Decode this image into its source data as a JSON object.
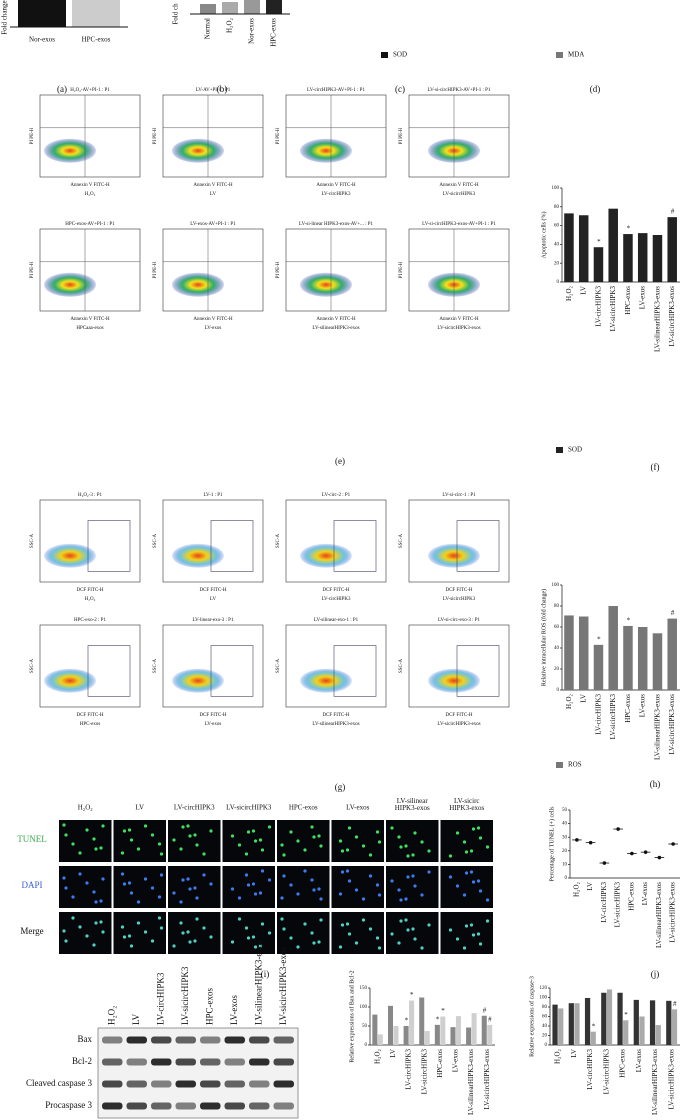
{
  "top": {
    "axis_a": "Fold change in",
    "axis_b": "Fold ch",
    "cats_a": [
      "Nor-exos",
      "HPC-exos"
    ],
    "cats_b": [
      "Normal",
      "H₂O₂",
      "Nor-exos",
      "HPC-exos"
    ],
    "legend": [
      "SOD",
      "MDA"
    ]
  },
  "panel_labels": [
    "(a)",
    "(b)",
    "(c)",
    "(d)",
    "(e)",
    "(f)",
    "(g)",
    "(h)",
    "(i)",
    "(j)"
  ],
  "flow_apoptosis": {
    "x_label": "Annexin V FITC-H",
    "y_label": "PI PE-H",
    "plots": [
      {
        "title": "H₂O₂-AV+PI-1 : P1",
        "caption": "H₂O₂"
      },
      {
        "title": "LV-AV+PI-1 : P1",
        "caption": "LV"
      },
      {
        "title": "LV-circHIPK3-AV+PI-1 : P1",
        "caption": "LV-circHIPK3"
      },
      {
        "title": "LV-si-circHIPK3-AV+PI-1 : P1",
        "caption": "LV-sicircHIPK3"
      },
      {
        "title": "HPC-exos-AV+PI-1 : P1",
        "caption": "HPCaaa-exos"
      },
      {
        "title": "LV-exos-AV+PI-1 : P1",
        "caption": "LV-exos"
      },
      {
        "title": "LV-si-linear HIPK3-exos-AV+... : P1",
        "caption": "LV-silinearHIPK3-exos"
      },
      {
        "title": "LV-si-circHIPK3-exos-AV+PI-1 : P1",
        "caption": "LV-sicircHIPK3-exos"
      }
    ]
  },
  "flow_ros": {
    "x_label": "DCF FITC-H",
    "y_label": "SSC-A",
    "plots": [
      {
        "title": "H₂O₂-3 : P1",
        "caption": "H₂O₂"
      },
      {
        "title": "LV-1 : P1",
        "caption": "LV"
      },
      {
        "title": "LV-circ-2 : P1",
        "caption": "LV-circHIPK3"
      },
      {
        "title": "LV-si-circ-1 : P1",
        "caption": "LV-sicircHIPK3"
      },
      {
        "title": "HPC-exo-2 : P1",
        "caption": "HPC-exos"
      },
      {
        "title": "LV-linear-exo-3 : P1",
        "caption": "LV-exos"
      },
      {
        "title": "LV-silinear-exo-1 : P1",
        "caption": "LV-silinearHIPK3-exos"
      },
      {
        "title": "LV-si-circ-exo-3 : P1",
        "caption": "LV-sicircHIPK3-exos"
      }
    ]
  },
  "microscopy": {
    "headers": [
      [
        "H₂O₂"
      ],
      [
        "LV"
      ],
      [
        "LV-circHIPK3"
      ],
      [
        "LV-sicircHIPK3"
      ],
      [
        "HPC-exos"
      ],
      [
        "LV-exos"
      ],
      [
        "LV-silinear",
        "HIPK3-exos"
      ],
      [
        "LV-sicirc",
        "HIPK3-exos"
      ]
    ],
    "rows": [
      "TUNEL",
      "DAPI",
      "Merge"
    ]
  },
  "blot": {
    "headers": [
      "H₂O₂",
      "LV",
      "LV-circHIPK3",
      "LV-sicircHIPK3",
      "HPC-exos",
      "LV-exos",
      "LV-silinearHIPK3-exos",
      "LV-sicircHIPK3-exos"
    ],
    "rows": [
      "Bax",
      "Bcl-2",
      "Cleaved caspase 3",
      "Procaspase 3"
    ]
  },
  "charts": [
    {
      "type": "bar",
      "ylabel": "Apoptotic cells (%)",
      "categories": [
        "H₂O₂",
        "LV",
        "LV-circHIPK3",
        "LV-sicircHIPK3",
        "HPC-exos",
        "LV-exos",
        "LV-silinearHIPK3-exos",
        "LV-sicircHIPK3-exos"
      ],
      "series": [
        {
          "name": "SOD",
          "color": "#222222",
          "values": [
            73,
            71,
            37,
            78,
            51,
            52,
            50,
            69
          ],
          "significance": [
            null,
            null,
            "*",
            null,
            "*",
            null,
            null,
            "#"
          ]
        }
      ],
      "ylim": [
        0,
        100
      ],
      "yticks": [
        0,
        20,
        40,
        60,
        80,
        100
      ]
    },
    {
      "type": "bar",
      "ylabel": "Relative intracellular ROS (fold change)",
      "categories": [
        "H₂O₂",
        "LV",
        "LV-circHIPK3",
        "LV-sicircHIPK3",
        "HPC-exos",
        "LV-exos",
        "LV-silinearHIPK3-exos",
        "LV-sicircHIPK3-exos"
      ],
      "series": [
        {
          "name": "ROS",
          "color": "#777777",
          "values": [
            71,
            70,
            43,
            80,
            61,
            60,
            54,
            68
          ],
          "significance": [
            null,
            null,
            "*",
            null,
            "*",
            null,
            null,
            "#"
          ]
        }
      ],
      "ylim": [
        0,
        100
      ],
      "yticks": [
        0,
        20,
        40,
        60,
        80,
        100
      ]
    },
    {
      "type": "dot",
      "ylabel": "Percentage of TUNEL (+) cells",
      "categories": [
        "H₂O₂",
        "LV",
        "LV-circHIPK3",
        "LV-sicircHIPK3",
        "HPC-exos",
        "LV-exos",
        "LV-silinearHIPK3-exos",
        "LV-sicircHIPK3-exos"
      ],
      "series": [
        {
          "color": "#111111",
          "values": [
            28,
            26,
            11,
            36,
            18,
            19,
            15,
            25
          ]
        }
      ],
      "ylim": [
        0,
        50
      ],
      "yticks": [
        0,
        10,
        20,
        30,
        40,
        50
      ]
    },
    {
      "type": "bar",
      "ylabel": "Relative expressions of Bax and Bcl-2",
      "categories": [
        "H₂O₂",
        "LV",
        "LV-circHIPK3",
        "LV-sicircHIPK3",
        "HPC-exos",
        "LV-exos",
        "LV-silinearHIPK3-exos",
        "LV-sicircHIPK3-exos"
      ],
      "series": [
        {
          "color": "#888888",
          "values": [
            80,
            103,
            50,
            125,
            53,
            47,
            46,
            77
          ],
          "significance": [
            null,
            null,
            "*",
            null,
            "*",
            null,
            null,
            "#"
          ]
        },
        {
          "color": "#cfcfcf",
          "values": [
            28,
            50,
            117,
            37,
            75,
            76,
            84,
            53
          ],
          "significance": [
            null,
            null,
            "*",
            null,
            "*",
            null,
            null,
            "#"
          ]
        }
      ],
      "ylim": [
        0,
        150
      ],
      "yticks": [
        0,
        50,
        100,
        150
      ]
    },
    {
      "type": "bar",
      "ylabel": "Relative expressions of caspase-3",
      "categories": [
        "H₂O₂",
        "LV",
        "LV-circHIPK3",
        "LV-sicircHIPK3",
        "HPC-exos",
        "LV-exos",
        "LV-silinearHIPK3-exos",
        "LV-sicircHIPK3-exos"
      ],
      "series": [
        {
          "color": "#333333",
          "values": [
            85,
            88,
            99,
            110,
            110,
            95,
            94,
            93
          ],
          "significance": [
            null,
            null,
            null,
            null,
            null,
            null,
            null,
            null
          ]
        },
        {
          "color": "#aaaaaa",
          "values": [
            77,
            88,
            28,
            117,
            52,
            60,
            42,
            75
          ],
          "significance": [
            null,
            null,
            "*",
            null,
            "*",
            null,
            null,
            "#"
          ]
        }
      ],
      "ylim": [
        0,
        120
      ],
      "yticks": [
        0,
        20,
        40,
        60,
        80,
        100,
        120
      ]
    }
  ]
}
